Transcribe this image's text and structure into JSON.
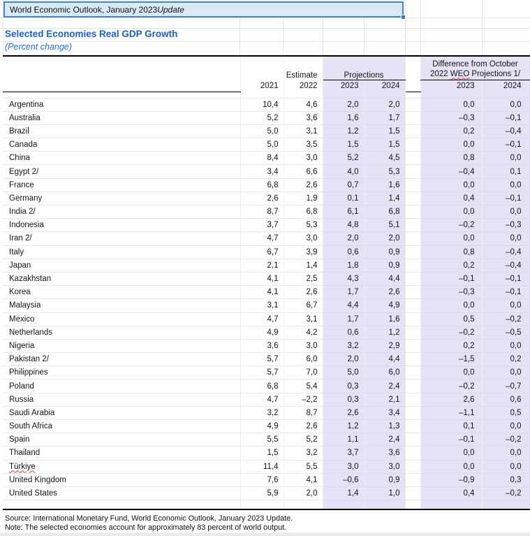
{
  "selected_cell": {
    "text_main": "World Economic Outlook, January 2023 ",
    "text_italic": "Update"
  },
  "heading": {
    "title": "Selected Economies Real GDP Growth",
    "subtitle": "(Percent change)"
  },
  "table": {
    "header": {
      "estimate": "Estimate",
      "projections": "Projections",
      "diff_line1": "Difference from October",
      "diff_line2_pre": "2022 ",
      "diff_line2_word": "WEO",
      "diff_line2_post": " Projections 1/",
      "years": [
        "2021",
        "2022",
        "2023",
        "2024",
        "2023",
        "2024"
      ]
    },
    "rows": [
      {
        "country": "Argentina",
        "squiggle": false,
        "values": [
          "10,4",
          "4,6",
          "2,0",
          "2,0",
          "0,0",
          "0,0"
        ]
      },
      {
        "country": "Australia",
        "squiggle": false,
        "values": [
          "5,2",
          "3,6",
          "1,6",
          "1,7",
          "–0,3",
          "–0,1"
        ]
      },
      {
        "country": "Brazil",
        "squiggle": false,
        "values": [
          "5,0",
          "3,1",
          "1,2",
          "1,5",
          "0,2",
          "–0,4"
        ]
      },
      {
        "country": "Canada",
        "squiggle": false,
        "values": [
          "5,0",
          "3,5",
          "1,5",
          "1,5",
          "0,0",
          "–0,1"
        ]
      },
      {
        "country": "China",
        "squiggle": false,
        "values": [
          "8,4",
          "3,0",
          "5,2",
          "4,5",
          "0,8",
          "0,0"
        ]
      },
      {
        "country": "Egypt 2/",
        "squiggle": false,
        "values": [
          "3,4",
          "6,6",
          "4,0",
          "5,3",
          "–0,4",
          "0,1"
        ]
      },
      {
        "country": "France",
        "squiggle": false,
        "values": [
          "6,8",
          "2,6",
          "0,7",
          "1,6",
          "0,0",
          "0,0"
        ]
      },
      {
        "country": "Germany",
        "squiggle": false,
        "values": [
          "2,6",
          "1,9",
          "0,1",
          "1,4",
          "0,4",
          "–0,1"
        ]
      },
      {
        "country": "India 2/",
        "squiggle": false,
        "values": [
          "8,7",
          "6,8",
          "6,1",
          "6,8",
          "0,0",
          "0,0"
        ]
      },
      {
        "country": "Indonesia",
        "squiggle": false,
        "values": [
          "3,7",
          "5,3",
          "4,8",
          "5,1",
          "–0,2",
          "–0,3"
        ]
      },
      {
        "country": "Iran 2/",
        "squiggle": false,
        "values": [
          "4,7",
          "3,0",
          "2,0",
          "2,0",
          "0,0",
          "0,0"
        ]
      },
      {
        "country": "Italy",
        "squiggle": false,
        "values": [
          "6,7",
          "3,9",
          "0,6",
          "0,9",
          "0,8",
          "–0,4"
        ]
      },
      {
        "country": "Japan",
        "squiggle": false,
        "values": [
          "2,1",
          "1,4",
          "1,8",
          "0,9",
          "0,2",
          "–0,4"
        ]
      },
      {
        "country": "Kazakhstan",
        "squiggle": false,
        "values": [
          "4,1",
          "2,5",
          "4,3",
          "4,4",
          "–0,1",
          "–0,1"
        ]
      },
      {
        "country": "Korea",
        "squiggle": false,
        "values": [
          "4,1",
          "2,6",
          "1,7",
          "2,6",
          "–0,3",
          "–0,1"
        ]
      },
      {
        "country": "Malaysia",
        "squiggle": false,
        "values": [
          "3,1",
          "6,7",
          "4,4",
          "4,9",
          "0,0",
          "0,0"
        ]
      },
      {
        "country": "Mexico",
        "squiggle": false,
        "values": [
          "4,7",
          "3,1",
          "1,7",
          "1,6",
          "0,5",
          "–0,2"
        ]
      },
      {
        "country": "Netherlands",
        "squiggle": false,
        "values": [
          "4,9",
          "4,2",
          "0,6",
          "1,2",
          "–0,2",
          "–0,5"
        ]
      },
      {
        "country": "Nigeria",
        "squiggle": false,
        "values": [
          "3,6",
          "3,0",
          "3,2",
          "2,9",
          "0,2",
          "0,0"
        ]
      },
      {
        "country": "Pakistan 2/",
        "squiggle": false,
        "values": [
          "5,7",
          "6,0",
          "2,0",
          "4,4",
          "–1,5",
          "0,2"
        ]
      },
      {
        "country": "Philippines",
        "squiggle": false,
        "values": [
          "5,7",
          "7,0",
          "5,0",
          "6,0",
          "0,0",
          "0,0"
        ]
      },
      {
        "country": "Poland",
        "squiggle": false,
        "values": [
          "6,8",
          "5,4",
          "0,3",
          "2,4",
          "–0,2",
          "–0,7"
        ]
      },
      {
        "country": "Russia",
        "squiggle": false,
        "values": [
          "4,7",
          "–2,2",
          "0,3",
          "2,1",
          "2,6",
          "0,6"
        ]
      },
      {
        "country": "Saudi Arabia",
        "squiggle": false,
        "values": [
          "3,2",
          "8,7",
          "2,6",
          "3,4",
          "–1,1",
          "0,5"
        ]
      },
      {
        "country": "South Africa",
        "squiggle": false,
        "values": [
          "4,9",
          "2,6",
          "1,2",
          "1,3",
          "0,1",
          "0,0"
        ]
      },
      {
        "country": "Spain",
        "squiggle": false,
        "values": [
          "5,5",
          "5,2",
          "1,1",
          "2,4",
          "–0,1",
          "–0,2"
        ]
      },
      {
        "country": "Thailand",
        "squiggle": false,
        "values": [
          "1,5",
          "3,2",
          "3,7",
          "3,6",
          "0,0",
          "0,0"
        ]
      },
      {
        "country": "Türkiye",
        "squiggle": true,
        "values": [
          "11,4",
          "5,5",
          "3,0",
          "3,0",
          "0,0",
          "0,0"
        ]
      },
      {
        "country": "United Kingdom",
        "squiggle": false,
        "values": [
          "7,6",
          "4,1",
          "–0,6",
          "0,9",
          "–0,9",
          "0,3"
        ]
      },
      {
        "country": "United States",
        "squiggle": false,
        "values": [
          "5,9",
          "2,0",
          "1,4",
          "1,0",
          "0,4",
          "–0,2"
        ]
      }
    ]
  },
  "footer": {
    "source": "Source: International Monetary Fund, World Economic Outlook, January 2023 Update.",
    "note": "Note: The selected economies account for approximately 83 percent of world output."
  },
  "colors": {
    "accent_blue": "#1a5fc6",
    "selection_border": "#3e87d8",
    "selection_fill": "#d9eaf9",
    "lavender_fill": "#e4e3f5",
    "squiggle_red": "#e03030"
  }
}
